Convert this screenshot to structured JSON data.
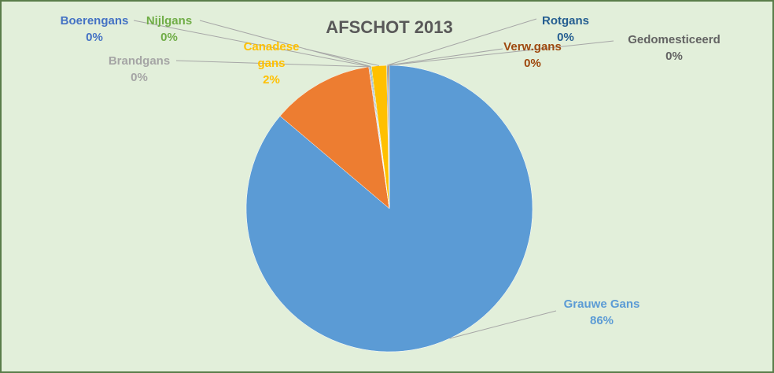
{
  "chart_data": {
    "type": "pie",
    "title": "AFSCHOT 2013",
    "categories": [
      "Grauwe Gans",
      null,
      "Brandgans",
      "Boerengans",
      "Nijlgans",
      "Canadese gans",
      "Rotgans",
      "Verw.gans",
      "Gedomesticeerd"
    ],
    "values": [
      86,
      11.5,
      0.1,
      0.1,
      0.1,
      1.7,
      0.1,
      0.1,
      0.1
    ],
    "value_labels": [
      "86%",
      null,
      "0%",
      "0%",
      "0%",
      "2%",
      "0%",
      "0%",
      "0%"
    ],
    "colors": [
      "#5b9bd5",
      "#ed7d31",
      "#a5a5a5",
      "#4472c4",
      "#70ad47",
      "#ffc000",
      "#255e91",
      "#9e480e",
      "#636363"
    ],
    "label_colors": [
      "#5b9bd5",
      null,
      "#a5a5a5",
      "#4472c4",
      "#70ad47",
      "#ffc000",
      "#255e91",
      "#9e480e",
      "#636363"
    ]
  }
}
